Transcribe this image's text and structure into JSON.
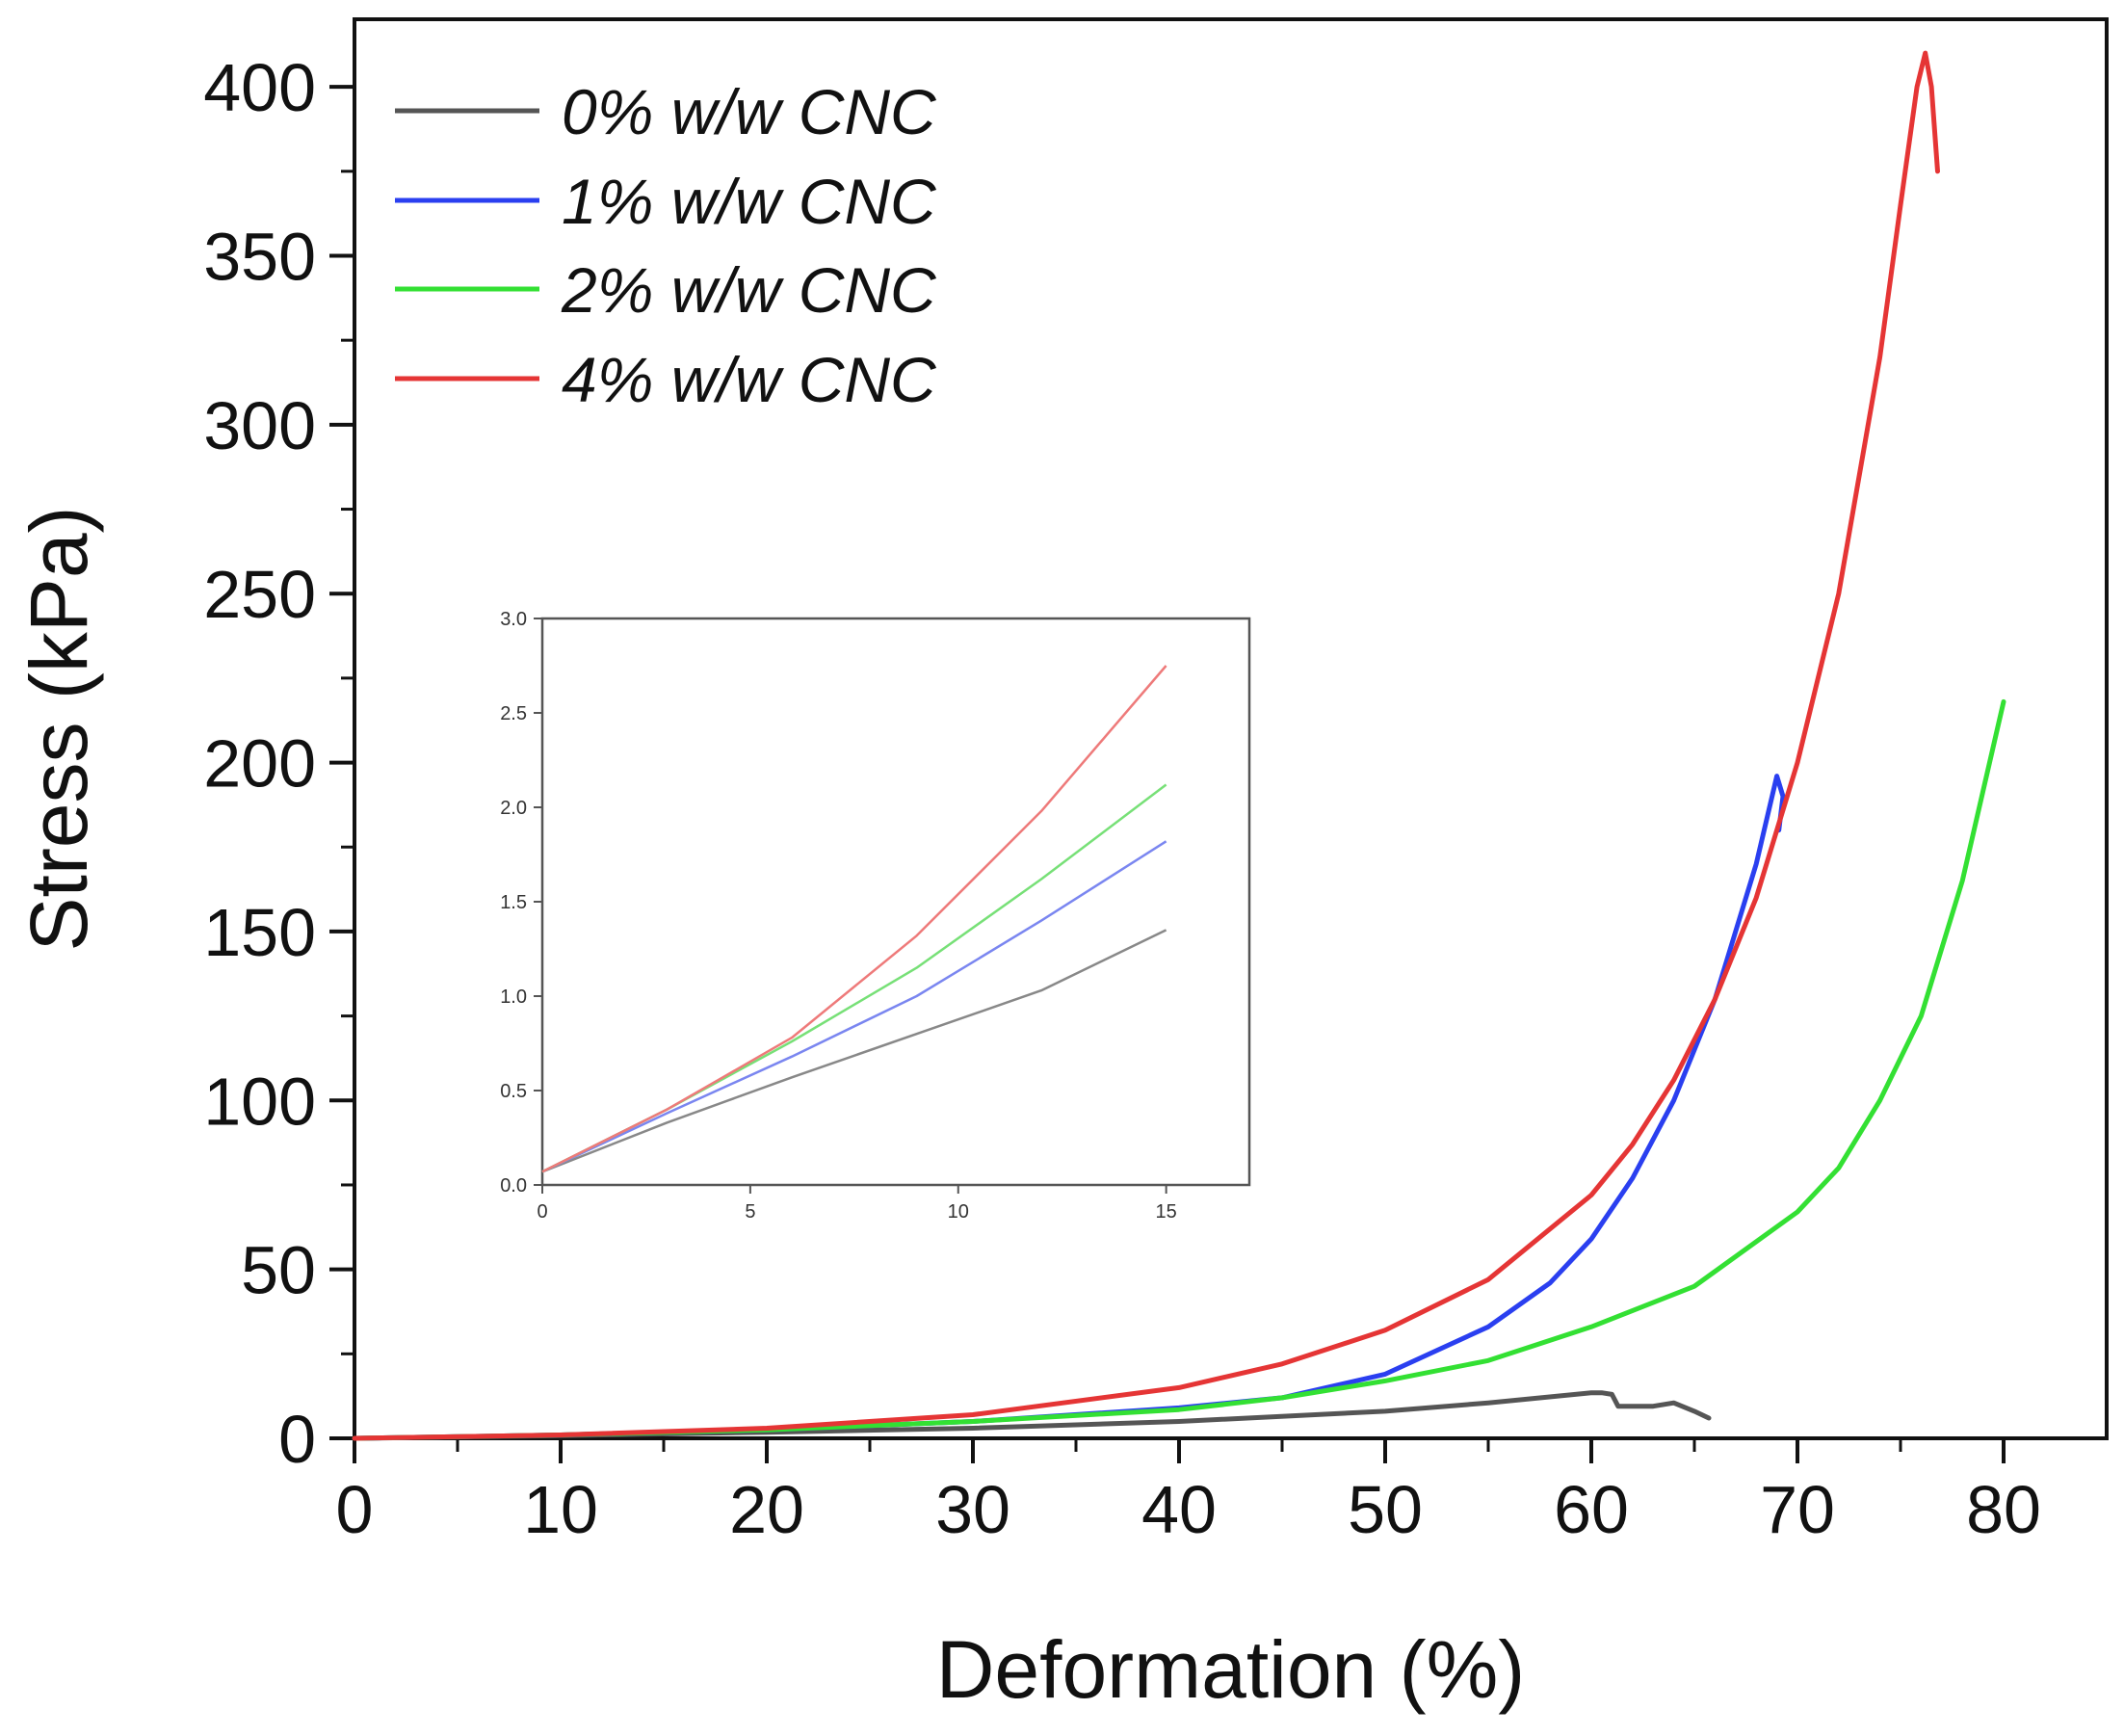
{
  "chart_data": [
    {
      "id": "main",
      "type": "line",
      "title": "",
      "xlabel": "Deformation (%)",
      "ylabel": "Stress (kPa)",
      "xlim": [
        0,
        85
      ],
      "ylim": [
        0,
        420
      ],
      "xticks": [
        0,
        10,
        20,
        30,
        40,
        50,
        60,
        70,
        80
      ],
      "yticks": [
        0,
        50,
        100,
        150,
        200,
        250,
        300,
        350,
        400
      ],
      "grid": false,
      "legend_position": "top-left",
      "series": [
        {
          "name": "0% w/w CNC",
          "color": "#555555",
          "x": [
            0,
            10,
            20,
            30,
            40,
            50,
            55,
            60,
            60.5,
            61,
            61.3,
            62,
            63,
            64,
            65,
            65.7
          ],
          "y": [
            0,
            0.8,
            1.8,
            3,
            5,
            8,
            10.5,
            13.5,
            13.5,
            13,
            9.5,
            9.5,
            9.5,
            10.5,
            8,
            6
          ]
        },
        {
          "name": "1% w/w CNC",
          "color": "#2a3ff0",
          "x": [
            0,
            10,
            20,
            30,
            40,
            45,
            50,
            55,
            58,
            60,
            62,
            64,
            65,
            66,
            67,
            68,
            68.5,
            69,
            69.3,
            69.1
          ],
          "y": [
            0,
            1,
            2.5,
            5,
            9,
            12,
            19,
            33,
            46,
            59,
            77,
            100,
            115,
            130,
            150,
            170,
            183,
            196,
            190,
            180
          ]
        },
        {
          "name": "2% w/w CNC",
          "color": "#33e033",
          "x": [
            0,
            10,
            20,
            30,
            40,
            45,
            50,
            55,
            60,
            65,
            70,
            72,
            74,
            76,
            78,
            80
          ],
          "y": [
            0,
            1,
            2.5,
            5,
            8.5,
            12,
            17,
            23,
            33,
            45,
            67,
            80,
            100,
            125,
            165,
            218
          ]
        },
        {
          "name": "4% w/w CNC",
          "color": "#e53535",
          "x": [
            0,
            10,
            20,
            30,
            40,
            45,
            50,
            55,
            60,
            62,
            64,
            66,
            68,
            70,
            72,
            74,
            75,
            75.8,
            76.2,
            76.5,
            76.8
          ],
          "y": [
            0,
            1,
            3,
            7,
            15,
            22,
            32,
            47,
            72,
            87,
            106,
            130,
            160,
            200,
            250,
            320,
            365,
            400,
            410,
            400,
            375
          ]
        }
      ]
    },
    {
      "id": "inset",
      "type": "line",
      "title": "",
      "xlabel": "",
      "ylabel": "",
      "xlim": [
        0,
        17
      ],
      "ylim": [
        0,
        3.0
      ],
      "xticks": [
        0,
        5,
        10,
        15
      ],
      "yticks": [
        0.0,
        0.5,
        1.0,
        1.5,
        2.0,
        2.5,
        3.0
      ],
      "ytick_labels": [
        "0.0",
        "0.5",
        "1.0",
        "1.5",
        "2.0",
        "2.5",
        "3.0"
      ],
      "grid": false,
      "series": [
        {
          "name": "0% w/w CNC",
          "color": "#888888",
          "x": [
            0,
            3,
            6,
            9,
            12,
            15
          ],
          "y": [
            0.07,
            0.33,
            0.57,
            0.8,
            1.03,
            1.35
          ]
        },
        {
          "name": "1% w/w CNC",
          "color": "#7a86f0",
          "x": [
            0,
            3,
            6,
            9,
            12,
            15
          ],
          "y": [
            0.07,
            0.38,
            0.68,
            1.0,
            1.4,
            1.82
          ]
        },
        {
          "name": "2% w/w CNC",
          "color": "#77e077",
          "x": [
            0,
            3,
            6,
            9,
            12,
            15
          ],
          "y": [
            0.07,
            0.4,
            0.76,
            1.15,
            1.62,
            2.12
          ]
        },
        {
          "name": "4% w/w CNC",
          "color": "#ee7a7a",
          "x": [
            0,
            3,
            6,
            9,
            12,
            15
          ],
          "y": [
            0.07,
            0.4,
            0.78,
            1.32,
            1.98,
            2.75
          ]
        }
      ]
    }
  ]
}
